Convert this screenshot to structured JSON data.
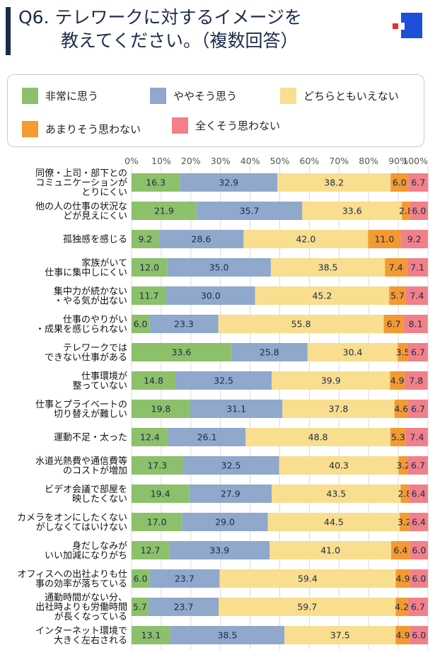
{
  "header": {
    "title_line1": "Q6. テレワークに対するイメージを",
    "title_line2": "教えてください。（複数回答）"
  },
  "legend": [
    {
      "label": "非常に思う",
      "color": "#8dc06a"
    },
    {
      "label": "ややそう思う",
      "color": "#8fa8cb"
    },
    {
      "label": "どちらともいえない",
      "color": "#f8de8e"
    },
    {
      "label": "あまりそう思わない",
      "color": "#f39a32"
    },
    {
      "label": "全くそう思わない",
      "color": "#f1808a"
    }
  ],
  "chart_data": {
    "type": "bar",
    "orientation": "horizontal-stacked-100",
    "xlim": [
      0,
      100
    ],
    "ticks": [
      "0%",
      "10%",
      "20%",
      "30%",
      "40%",
      "50%",
      "60%",
      "70%",
      "80%",
      "90%",
      "100%"
    ],
    "grid": true,
    "legend_position": "top",
    "categories": [
      [
        "同僚・上司・部下との",
        "コミュニケーションが",
        "とりにくい"
      ],
      [
        "他の人の仕事の状況な",
        "どが見えにくい"
      ],
      [
        "孤独感を感じる"
      ],
      [
        "家族がいて",
        "仕事に集中しにくい"
      ],
      [
        "集中力が続かない",
        "・やる気が出ない"
      ],
      [
        "仕事のやりがい",
        "・成果を感じられない"
      ],
      [
        "テレワークでは",
        "できない仕事がある"
      ],
      [
        "仕事環境が",
        "整っていない"
      ],
      [
        "仕事とプライベートの",
        "切り替えが難しい"
      ],
      [
        "運動不足・太った"
      ],
      [
        "水道光熱費や通信費等",
        "のコストが増加"
      ],
      [
        "ビデオ会議で部屋を",
        "映したくない"
      ],
      [
        "カメラをオンにしたくない",
        "がしなくてはいけない"
      ],
      [
        "身だしなみが",
        "いい加減になりがち"
      ],
      [
        "オフィスへの出社よりも仕",
        "事の効率が落ちている"
      ],
      [
        "通勤時間がない分、",
        "出社時よりも労働時間",
        "が長くなっている"
      ],
      [
        "インターネット環境で",
        "大きく左右される"
      ]
    ],
    "series": [
      {
        "name": "非常に思う",
        "color": "#8dc06a",
        "values": [
          16.3,
          21.9,
          9.2,
          12.0,
          11.7,
          6.0,
          33.6,
          14.8,
          19.8,
          12.4,
          17.3,
          19.4,
          17.0,
          12.7,
          6.0,
          5.7,
          13.1
        ]
      },
      {
        "name": "ややそう思う",
        "color": "#8fa8cb",
        "values": [
          32.9,
          35.7,
          28.6,
          35.0,
          30.0,
          23.3,
          25.8,
          32.5,
          31.1,
          26.1,
          32.5,
          27.9,
          29.0,
          33.9,
          23.7,
          23.7,
          38.5
        ]
      },
      {
        "name": "どちらともいえない",
        "color": "#f8de8e",
        "values": [
          38.2,
          33.6,
          42.0,
          38.5,
          45.2,
          55.8,
          30.4,
          39.9,
          37.8,
          48.8,
          40.3,
          43.5,
          44.5,
          41.0,
          59.4,
          59.7,
          37.5
        ]
      },
      {
        "name": "あまりそう思わない",
        "color": "#f39a32",
        "values": [
          6.0,
          2.8,
          11.0,
          7.4,
          5.7,
          6.7,
          3.5,
          4.9,
          4.6,
          5.3,
          3.2,
          2.8,
          3.2,
          6.4,
          4.9,
          4.2,
          4.9
        ]
      },
      {
        "name": "全くそう思わない",
        "color": "#f1808a",
        "values": [
          6.7,
          6.0,
          9.2,
          7.1,
          7.4,
          8.1,
          6.7,
          7.8,
          6.7,
          7.4,
          6.7,
          6.4,
          6.4,
          6.0,
          6.0,
          6.7,
          6.0
        ]
      }
    ]
  }
}
